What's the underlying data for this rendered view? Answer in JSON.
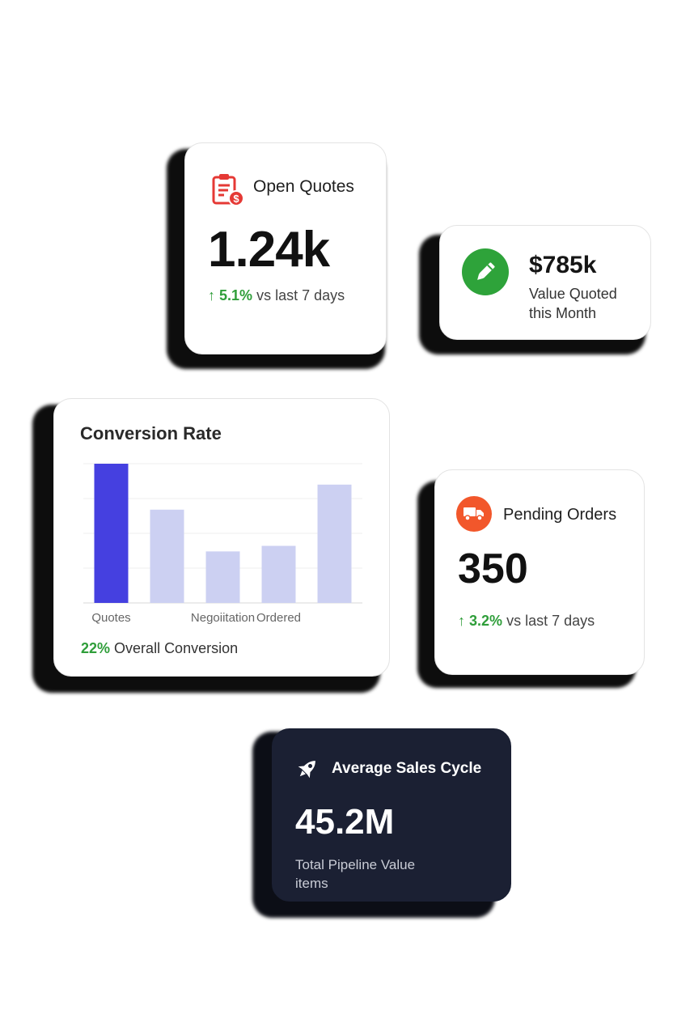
{
  "open_quotes": {
    "title": "Open Quotes",
    "value": "1.24k",
    "trend_arrow": "↑",
    "trend_value": "5.1%",
    "trend_text": "vs last 7 days",
    "icon": "clipboard-dollar-icon",
    "icon_color": "#e53935"
  },
  "value_quoted": {
    "value": "$785k",
    "label_line1": "Value Quoted",
    "label_line2": "this Month",
    "icon": "pencil-icon",
    "icon_bg": "#2ea33a"
  },
  "conversion": {
    "title": "Conversion Rate",
    "footer_value": "22%",
    "footer_text": "Overall Conversion"
  },
  "chart_data": {
    "type": "bar",
    "categories": [
      "Quotes",
      "",
      "Negoiitation",
      "Ordered",
      ""
    ],
    "tick_labels": [
      "Quotes",
      "Negoiitation",
      "Ordered"
    ],
    "values": [
      100,
      67,
      37,
      41,
      85
    ],
    "ylim": [
      0,
      100
    ],
    "grid": true,
    "colors": [
      "#4540e0",
      "#ccd0f2",
      "#ccd0f2",
      "#ccd0f2",
      "#ccd0f2"
    ]
  },
  "pending_orders": {
    "title": "Pending Orders",
    "value": "350",
    "trend_arrow": "↑",
    "trend_value": "3.2%",
    "trend_text": "vs last 7 days",
    "icon": "truck-icon",
    "icon_bg": "#f2572b"
  },
  "sales_cycle": {
    "title": "Average Sales Cycle",
    "value": "45.2M",
    "label_line1": "Total Pipeline Value",
    "label_line2": "items",
    "icon": "rocket-icon"
  }
}
